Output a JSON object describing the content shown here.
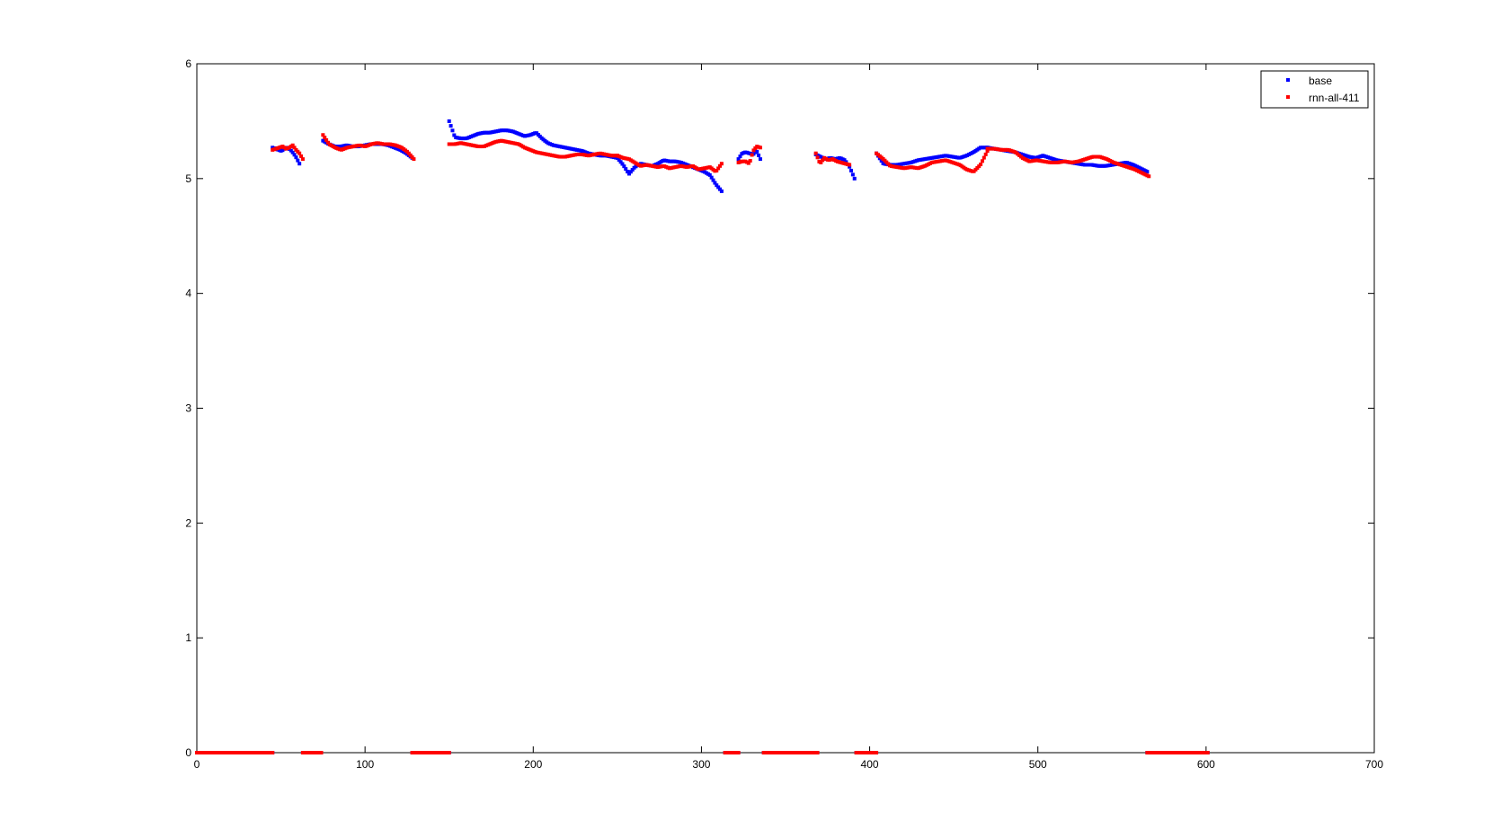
{
  "chart_data": {
    "type": "scatter",
    "title": "",
    "xlabel": "",
    "ylabel": "",
    "xlim": [
      0,
      700
    ],
    "ylim": [
      0,
      6
    ],
    "xticks": [
      0,
      100,
      200,
      300,
      400,
      500,
      600,
      700
    ],
    "yticks": [
      0,
      1,
      2,
      3,
      4,
      5,
      6
    ],
    "grid": false,
    "legend_position": "top-right",
    "series": [
      {
        "name": "base",
        "color": "#0000ff",
        "segments": [
          {
            "x0": 45,
            "x1": 61,
            "y": [
              5.27,
              5.26,
              5.25,
              5.24,
              5.26,
              5.27,
              5.25,
              5.22,
              5.18,
              5.13
            ]
          },
          {
            "x0": 75,
            "x1": 128,
            "y": [
              5.33,
              5.3,
              5.28,
              5.28,
              5.29,
              5.28,
              5.28,
              5.29,
              5.3,
              5.3,
              5.3,
              5.29,
              5.27,
              5.25,
              5.22,
              5.18
            ]
          },
          {
            "x0": 150,
            "x1": 250,
            "y": [
              5.5,
              5.36,
              5.35,
              5.35,
              5.37,
              5.39,
              5.4,
              5.4,
              5.41,
              5.42,
              5.42,
              5.41,
              5.39,
              5.37,
              5.38,
              5.4,
              5.35,
              5.31,
              5.29,
              5.28,
              5.27,
              5.26,
              5.25,
              5.24,
              5.22,
              5.21,
              5.2,
              5.2,
              5.19,
              5.18
            ]
          },
          {
            "x0": 250,
            "x1": 312,
            "y": [
              5.18,
              5.12,
              5.04,
              5.1,
              5.13,
              5.12,
              5.11,
              5.13,
              5.16,
              5.15,
              5.15,
              5.14,
              5.12,
              5.1,
              5.08,
              5.06,
              5.03,
              4.95,
              4.89
            ]
          },
          {
            "x0": 322,
            "x1": 335,
            "y": [
              5.17,
              5.22,
              5.23,
              5.22,
              5.21,
              5.24,
              5.17
            ]
          },
          {
            "x0": 368,
            "x1": 391,
            "y": [
              5.21,
              5.19,
              5.17,
              5.18,
              5.17,
              5.18,
              5.16,
              5.1,
              5.0
            ]
          },
          {
            "x0": 404,
            "x1": 470,
            "y": [
              5.22,
              5.13,
              5.12,
              5.12,
              5.13,
              5.14,
              5.16,
              5.17,
              5.18,
              5.19,
              5.2,
              5.19,
              5.18,
              5.2,
              5.23,
              5.27,
              5.27
            ]
          },
          {
            "x0": 470,
            "x1": 565,
            "y": [
              5.27,
              5.26,
              5.25,
              5.24,
              5.23,
              5.21,
              5.19,
              5.18,
              5.2,
              5.18,
              5.16,
              5.15,
              5.14,
              5.13,
              5.12,
              5.12,
              5.11,
              5.11,
              5.12,
              5.13,
              5.14,
              5.12,
              5.09,
              5.06
            ]
          },
          {
            "x0": 0,
            "x1": 45,
            "y": [
              0
            ]
          },
          {
            "x0": 63,
            "x1": 74,
            "y": [
              0
            ]
          },
          {
            "x0": 128,
            "x1": 150,
            "y": [
              0
            ]
          },
          {
            "x0": 314,
            "x1": 322,
            "y": [
              0
            ]
          },
          {
            "x0": 337,
            "x1": 369,
            "y": [
              0
            ]
          },
          {
            "x0": 392,
            "x1": 404,
            "y": [
              0
            ]
          },
          {
            "x0": 565,
            "x1": 601,
            "y": [
              0
            ]
          }
        ]
      },
      {
        "name": "rnn-all-411",
        "color": "#ff0000",
        "segments": [
          {
            "x0": 45,
            "x1": 63,
            "y": [
              5.25,
              5.26,
              5.27,
              5.28,
              5.26,
              5.27,
              5.29,
              5.25,
              5.22,
              5.17
            ]
          },
          {
            "x0": 75,
            "x1": 129,
            "y": [
              5.38,
              5.3,
              5.27,
              5.25,
              5.27,
              5.28,
              5.29,
              5.28,
              5.3,
              5.31,
              5.3,
              5.3,
              5.29,
              5.27,
              5.23,
              5.17
            ]
          },
          {
            "x0": 150,
            "x1": 250,
            "y": [
              5.3,
              5.3,
              5.31,
              5.3,
              5.29,
              5.28,
              5.28,
              5.3,
              5.32,
              5.33,
              5.32,
              5.31,
              5.3,
              5.27,
              5.25,
              5.23,
              5.22,
              5.21,
              5.2,
              5.19,
              5.19,
              5.2,
              5.21,
              5.21,
              5.2,
              5.21,
              5.22,
              5.21,
              5.2,
              5.2
            ]
          },
          {
            "x0": 250,
            "x1": 312,
            "y": [
              5.2,
              5.18,
              5.17,
              5.14,
              5.11,
              5.12,
              5.11,
              5.1,
              5.11,
              5.09,
              5.1,
              5.11,
              5.1,
              5.11,
              5.08,
              5.09,
              5.1,
              5.06,
              5.13
            ]
          },
          {
            "x0": 322,
            "x1": 335,
            "y": [
              5.14,
              5.15,
              5.15,
              5.13,
              5.24,
              5.28,
              5.27
            ]
          },
          {
            "x0": 368,
            "x1": 388,
            "y": [
              5.22,
              5.13,
              5.18,
              5.16,
              5.17,
              5.15,
              5.14,
              5.13,
              5.12
            ]
          },
          {
            "x0": 404,
            "x1": 470,
            "y": [
              5.22,
              5.17,
              5.11,
              5.1,
              5.09,
              5.1,
              5.09,
              5.11,
              5.14,
              5.15,
              5.16,
              5.14,
              5.12,
              5.08,
              5.06,
              5.12,
              5.24
            ]
          },
          {
            "x0": 470,
            "x1": 566,
            "y": [
              5.26,
              5.26,
              5.25,
              5.25,
              5.23,
              5.18,
              5.15,
              5.16,
              5.15,
              5.14,
              5.14,
              5.15,
              5.14,
              5.15,
              5.17,
              5.19,
              5.19,
              5.17,
              5.14,
              5.12,
              5.1,
              5.08,
              5.05,
              5.02
            ]
          },
          {
            "x0": 0,
            "x1": 45,
            "y": [
              0
            ]
          },
          {
            "x0": 63,
            "x1": 74,
            "y": [
              0
            ]
          },
          {
            "x0": 128,
            "x1": 150,
            "y": [
              0
            ]
          },
          {
            "x0": 314,
            "x1": 322,
            "y": [
              0
            ]
          },
          {
            "x0": 337,
            "x1": 369,
            "y": [
              0
            ]
          },
          {
            "x0": 392,
            "x1": 404,
            "y": [
              0
            ]
          },
          {
            "x0": 565,
            "x1": 601,
            "y": [
              0
            ]
          }
        ]
      }
    ]
  }
}
